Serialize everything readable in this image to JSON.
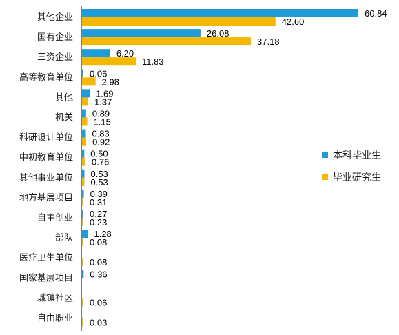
{
  "chart_data": {
    "type": "bar",
    "orientation": "horizontal",
    "categories": [
      "其他企业",
      "国有企业",
      "三资企业",
      "高等教育单位",
      "其他",
      "机关",
      "科研设计单位",
      "中初教育单位",
      "其他事业单位",
      "地方基层项目",
      "自主创业",
      "部队",
      "医疗卫生单位",
      "国家基层项目",
      "城镇社区",
      "自由职业"
    ],
    "series": [
      {
        "name": "本科毕业生",
        "color": "#1f9bd7",
        "values": [
          60.84,
          26.08,
          6.2,
          0.06,
          1.69,
          0.89,
          0.83,
          0.5,
          0.53,
          0.39,
          0.27,
          1.28,
          null,
          0.36,
          null,
          null
        ],
        "labels": [
          "60.84",
          "26.08",
          "6.20",
          "0.06",
          "1.69",
          "0.89",
          "0.83",
          "0.50",
          "0.53",
          "0.39",
          "0.27",
          "1.28",
          "",
          "0.36",
          "",
          ""
        ]
      },
      {
        "name": "毕业研究生",
        "color": "#f5b800",
        "values": [
          42.6,
          37.18,
          11.83,
          2.98,
          1.37,
          1.15,
          0.92,
          0.76,
          0.53,
          0.31,
          0.23,
          0.08,
          0.08,
          null,
          0.06,
          0.03
        ],
        "labels": [
          "42.60",
          "37.18",
          "11.83",
          "2.98",
          "1.37",
          "1.15",
          "0.92",
          "0.76",
          "0.53",
          "0.31",
          "0.23",
          "0.08",
          "0.08",
          "",
          "0.06",
          "0.03"
        ]
      }
    ],
    "title": "",
    "xlabel": "",
    "ylabel": "",
    "xlim": [
      0,
      62
    ],
    "grid": false,
    "legend": "right"
  }
}
